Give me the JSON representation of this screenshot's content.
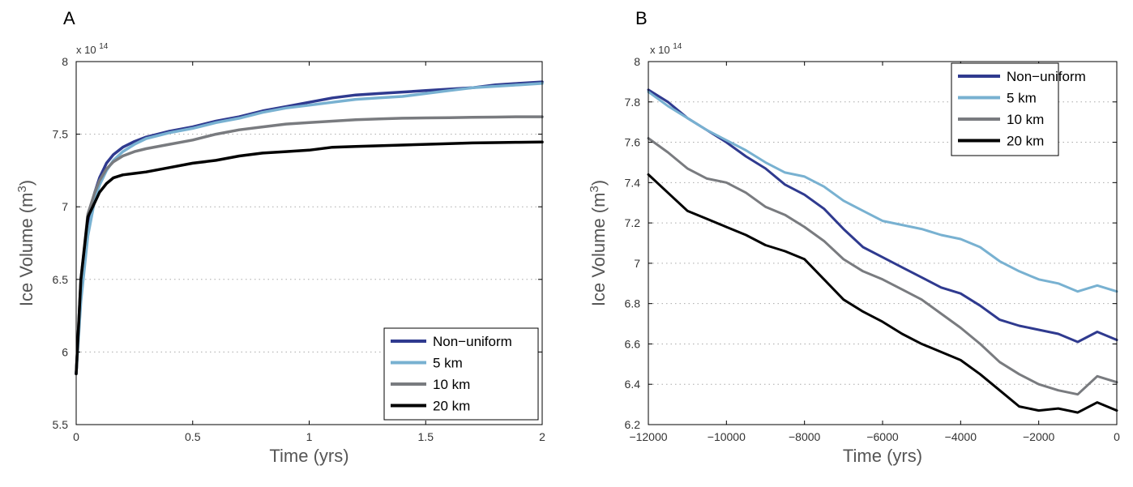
{
  "chart_data": [
    {
      "type": "line",
      "panel_label": "A",
      "xlabel": "Time (yrs)",
      "ylabel_main": "Ice Volume (m",
      "ylabel_sup": "3",
      "ylabel_end": ")",
      "y_exponent": "x 10",
      "y_exponent_sup": "14",
      "xlim": [
        0,
        2
      ],
      "ylim": [
        5.5,
        8
      ],
      "xticks": [
        0,
        0.5,
        1,
        1.5,
        2
      ],
      "xtick_labels": [
        "0",
        "0.5",
        "1",
        "1.5",
        "2"
      ],
      "yticks": [
        5.5,
        6,
        6.5,
        7,
        7.5,
        8
      ],
      "ytick_labels": [
        "5.5",
        "6",
        "6.5",
        "7",
        "7.5",
        "8"
      ],
      "grid": "horizontal dotted",
      "legend_position": "bottom-right",
      "series": [
        {
          "name": "Non−uniform",
          "color": "#2f3a8f",
          "width": 3.5,
          "x": [
            0,
            0.02,
            0.05,
            0.08,
            0.1,
            0.13,
            0.16,
            0.2,
            0.25,
            0.3,
            0.4,
            0.5,
            0.6,
            0.7,
            0.8,
            0.9,
            1.0,
            1.1,
            1.2,
            1.3,
            1.4,
            1.5,
            1.6,
            1.7,
            1.8,
            1.9,
            2.0
          ],
          "y": [
            5.85,
            6.45,
            6.9,
            7.1,
            7.2,
            7.3,
            7.36,
            7.41,
            7.45,
            7.48,
            7.52,
            7.55,
            7.59,
            7.62,
            7.66,
            7.69,
            7.72,
            7.75,
            7.77,
            7.78,
            7.79,
            7.8,
            7.81,
            7.82,
            7.84,
            7.85,
            7.86
          ]
        },
        {
          "name": "5 km",
          "color": "#78b1d1",
          "width": 3.5,
          "x": [
            0,
            0.02,
            0.05,
            0.08,
            0.1,
            0.13,
            0.16,
            0.2,
            0.25,
            0.3,
            0.4,
            0.5,
            0.6,
            0.7,
            0.8,
            0.9,
            1.0,
            1.1,
            1.2,
            1.3,
            1.4,
            1.5,
            1.6,
            1.7,
            1.8,
            1.9,
            2.0
          ],
          "y": [
            5.85,
            6.35,
            6.8,
            7.05,
            7.15,
            7.25,
            7.32,
            7.38,
            7.43,
            7.47,
            7.51,
            7.54,
            7.58,
            7.61,
            7.65,
            7.68,
            7.7,
            7.72,
            7.74,
            7.75,
            7.76,
            7.78,
            7.8,
            7.82,
            7.83,
            7.84,
            7.85
          ]
        },
        {
          "name": "10 km",
          "color": "#797b7f",
          "width": 3.5,
          "x": [
            0,
            0.02,
            0.05,
            0.08,
            0.1,
            0.13,
            0.16,
            0.2,
            0.25,
            0.3,
            0.4,
            0.5,
            0.6,
            0.7,
            0.8,
            0.9,
            1.0,
            1.1,
            1.2,
            1.3,
            1.4,
            1.5,
            1.6,
            1.7,
            1.8,
            1.9,
            2.0
          ],
          "y": [
            5.85,
            6.5,
            6.95,
            7.1,
            7.18,
            7.26,
            7.31,
            7.35,
            7.38,
            7.4,
            7.43,
            7.46,
            7.5,
            7.53,
            7.55,
            7.57,
            7.58,
            7.59,
            7.6,
            7.605,
            7.61,
            7.612,
            7.614,
            7.616,
            7.618,
            7.62,
            7.62
          ]
        },
        {
          "name": "20 km",
          "color": "#000000",
          "width": 3.5,
          "x": [
            0,
            0.02,
            0.05,
            0.08,
            0.1,
            0.13,
            0.16,
            0.2,
            0.25,
            0.3,
            0.4,
            0.5,
            0.6,
            0.7,
            0.8,
            0.9,
            1.0,
            1.1,
            1.2,
            1.3,
            1.4,
            1.5,
            1.6,
            1.7,
            1.8,
            1.9,
            2.0
          ],
          "y": [
            5.85,
            6.5,
            6.93,
            7.03,
            7.1,
            7.16,
            7.2,
            7.22,
            7.23,
            7.24,
            7.27,
            7.3,
            7.32,
            7.35,
            7.37,
            7.38,
            7.39,
            7.41,
            7.415,
            7.42,
            7.425,
            7.43,
            7.435,
            7.44,
            7.442,
            7.444,
            7.446
          ]
        }
      ]
    },
    {
      "type": "line",
      "panel_label": "B",
      "xlabel": "Time (yrs)",
      "ylabel_main": "Ice Volume (m",
      "ylabel_sup": "3",
      "ylabel_end": ")",
      "y_exponent": "x 10",
      "y_exponent_sup": "14",
      "xlim": [
        -12000,
        0
      ],
      "ylim": [
        6.2,
        8
      ],
      "xticks": [
        -12000,
        -10000,
        -8000,
        -6000,
        -4000,
        -2000,
        0
      ],
      "xtick_labels": [
        "−12000",
        "−10000",
        "−8000",
        "−6000",
        "−4000",
        "−2000",
        "0"
      ],
      "yticks": [
        6.2,
        6.4,
        6.6,
        6.8,
        7,
        7.2,
        7.4,
        7.6,
        7.8,
        8
      ],
      "ytick_labels": [
        "6.2",
        "6.4",
        "6.6",
        "6.8",
        "7",
        "7.2",
        "7.4",
        "7.6",
        "7.8",
        "8"
      ],
      "grid": "horizontal dotted",
      "legend_position": "top-right",
      "series": [
        {
          "name": "Non−uniform",
          "color": "#2f3a8f",
          "width": 3,
          "x": [
            -12000,
            -11500,
            -11000,
            -10500,
            -10000,
            -9500,
            -9000,
            -8500,
            -8000,
            -7500,
            -7000,
            -6500,
            -6000,
            -5500,
            -5000,
            -4500,
            -4000,
            -3500,
            -3000,
            -2500,
            -2000,
            -1500,
            -1000,
            -500,
            0
          ],
          "y": [
            7.86,
            7.8,
            7.72,
            7.66,
            7.6,
            7.53,
            7.47,
            7.39,
            7.34,
            7.27,
            7.17,
            7.08,
            7.03,
            6.98,
            6.93,
            6.88,
            6.85,
            6.79,
            6.72,
            6.69,
            6.67,
            6.65,
            6.61,
            6.66,
            6.62
          ]
        },
        {
          "name": "5 km",
          "color": "#78b1d1",
          "width": 3,
          "x": [
            -12000,
            -11500,
            -11000,
            -10500,
            -10000,
            -9500,
            -9000,
            -8500,
            -8000,
            -7500,
            -7000,
            -6500,
            -6000,
            -5500,
            -5000,
            -4500,
            -4000,
            -3500,
            -3000,
            -2500,
            -2000,
            -1500,
            -1000,
            -500,
            0
          ],
          "y": [
            7.85,
            7.78,
            7.72,
            7.66,
            7.61,
            7.56,
            7.5,
            7.45,
            7.43,
            7.38,
            7.31,
            7.26,
            7.21,
            7.19,
            7.17,
            7.14,
            7.12,
            7.08,
            7.01,
            6.96,
            6.92,
            6.9,
            6.86,
            6.89,
            6.86
          ]
        },
        {
          "name": "10 km",
          "color": "#797b7f",
          "width": 3,
          "x": [
            -12000,
            -11500,
            -11000,
            -10500,
            -10000,
            -9500,
            -9000,
            -8500,
            -8000,
            -7500,
            -7000,
            -6500,
            -6000,
            -5500,
            -5000,
            -4500,
            -4000,
            -3500,
            -3000,
            -2500,
            -2000,
            -1500,
            -1000,
            -500,
            0
          ],
          "y": [
            7.62,
            7.55,
            7.47,
            7.42,
            7.4,
            7.35,
            7.28,
            7.24,
            7.18,
            7.11,
            7.02,
            6.96,
            6.92,
            6.87,
            6.82,
            6.75,
            6.68,
            6.6,
            6.51,
            6.45,
            6.4,
            6.37,
            6.35,
            6.44,
            6.41
          ]
        },
        {
          "name": "20 km",
          "color": "#000000",
          "width": 3,
          "x": [
            -12000,
            -11500,
            -11000,
            -10500,
            -10000,
            -9500,
            -9000,
            -8500,
            -8000,
            -7500,
            -7000,
            -6500,
            -6000,
            -5500,
            -5000,
            -4500,
            -4000,
            -3500,
            -3000,
            -2500,
            -2000,
            -1500,
            -1000,
            -500,
            0
          ],
          "y": [
            7.44,
            7.35,
            7.26,
            7.22,
            7.18,
            7.14,
            7.09,
            7.06,
            7.02,
            6.92,
            6.82,
            6.76,
            6.71,
            6.65,
            6.6,
            6.56,
            6.52,
            6.45,
            6.37,
            6.29,
            6.27,
            6.28,
            6.26,
            6.31,
            6.27
          ]
        }
      ]
    }
  ]
}
